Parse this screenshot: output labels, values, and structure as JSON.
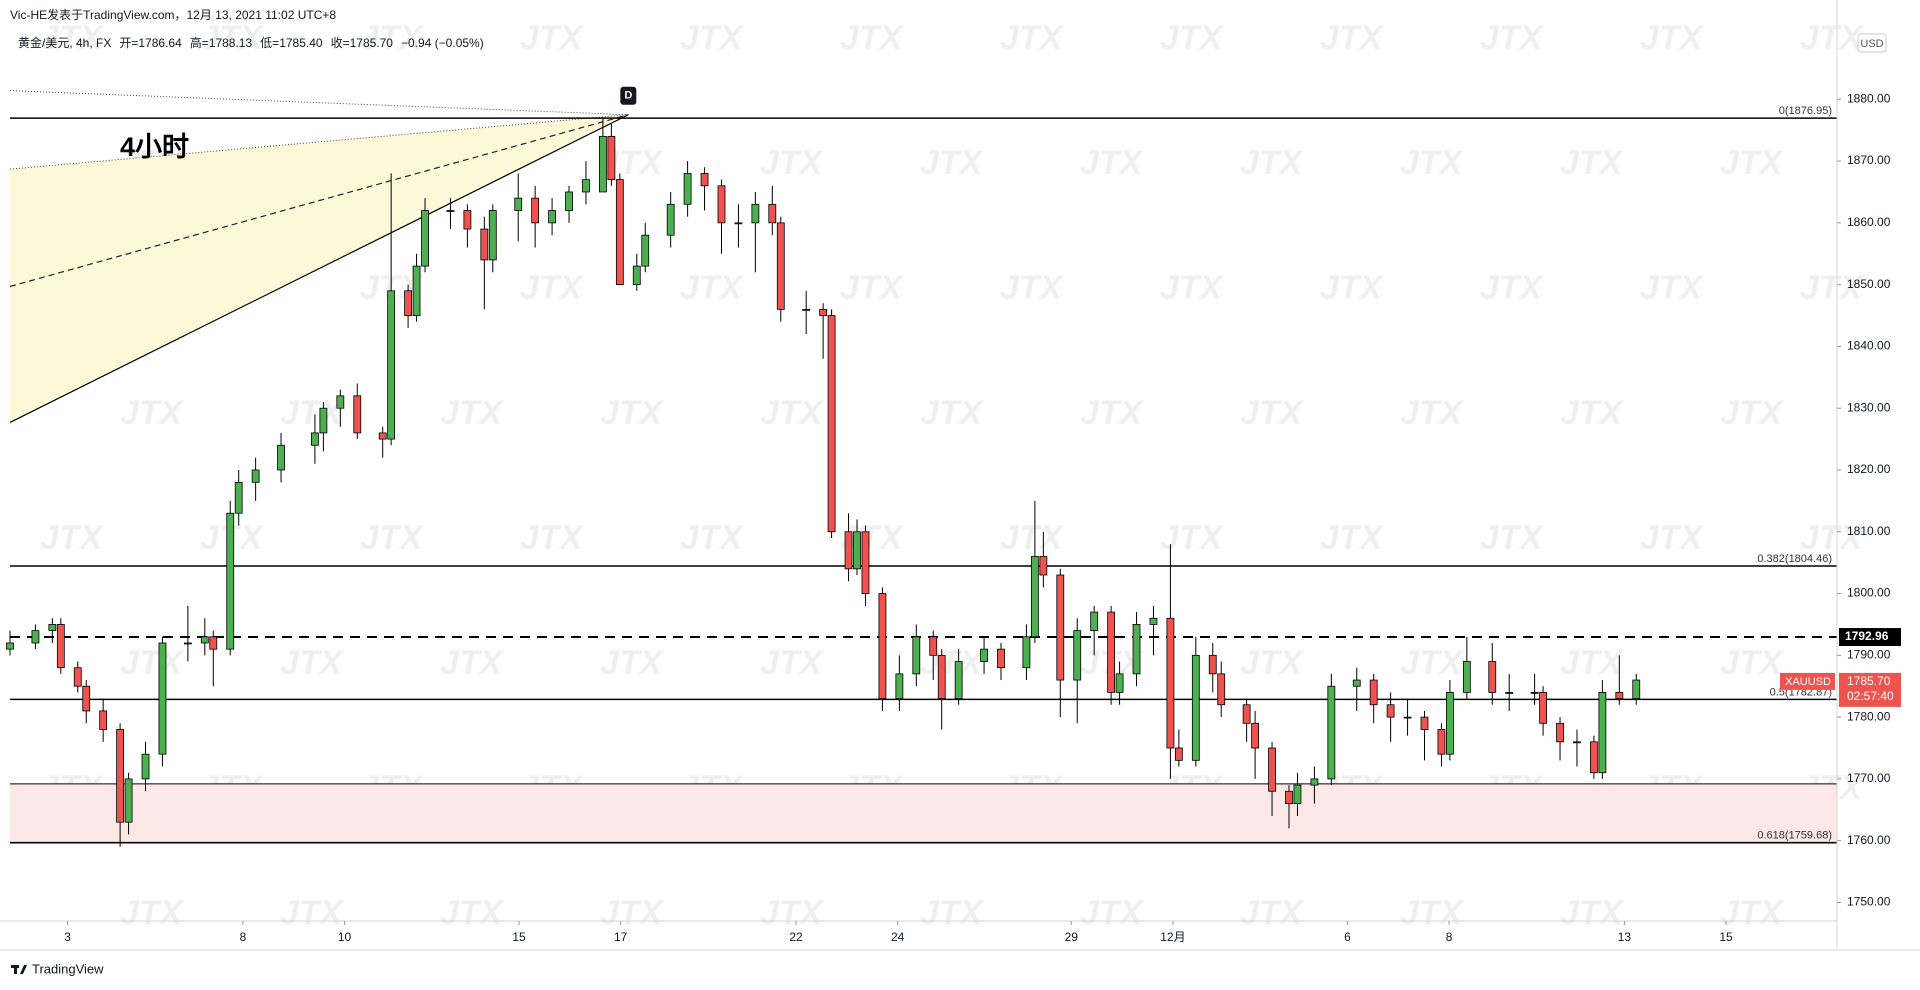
{
  "chart_data": {
    "type": "candlestick",
    "header": "Vic-HE发表于TradingView.com，12月 13, 2021 11:02 UTC+8",
    "symbol": "黄金/美元, 4h, FX",
    "ohlc_legend": [
      {
        "name": "开=",
        "value": 1786.64
      },
      {
        "name": "高=",
        "value": 1788.13
      },
      {
        "name": "低=",
        "value": 1785.4,
        "label": "1785.40"
      },
      {
        "name": "收=",
        "value": 1785.7,
        "label": "1785.70"
      }
    ],
    "change": "−0.94 (−0.05%)",
    "annotation": "4小时",
    "point_label": "D",
    "currency": "USD",
    "watermark": "JTX",
    "brand": "TradingView",
    "up_color": "#4caf50",
    "down_color": "#ef5350",
    "x": [
      0,
      3,
      5,
      6,
      8,
      9,
      11,
      13,
      14,
      16,
      18,
      21,
      23,
      24,
      26,
      27,
      29,
      32,
      36,
      37,
      39,
      41,
      44,
      45,
      47,
      48,
      49,
      52,
      54,
      56,
      57,
      60,
      62,
      64,
      66,
      68,
      70,
      71,
      72,
      74,
      75,
      78,
      80,
      82,
      84,
      86,
      88,
      90,
      91,
      94,
      96,
      97,
      99,
      100,
      101,
      103,
      105,
      107,
      109,
      110,
      112,
      115,
      117,
      120,
      121,
      122,
      124,
      126,
      128,
      130,
      131,
      133,
      135,
      137,
      138,
      140,
      142,
      143,
      146,
      147,
      149,
      151,
      152,
      154,
      156,
      159,
      161,
      163,
      165,
      167,
      169,
      170,
      172,
      175,
      177,
      180,
      181,
      183,
      185,
      187,
      188,
      190,
      192
    ],
    "open": [
      1791,
      1792,
      1794,
      1795,
      1788,
      1785,
      1781,
      1778,
      1763,
      1770,
      1774,
      1792,
      1792,
      1793,
      1791,
      1813,
      1818,
      1820,
      1824,
      1826,
      1830,
      1832,
      1826,
      1825,
      1849,
      1845,
      1853,
      1862,
      1862,
      1859,
      1854,
      1862,
      1864,
      1860,
      1862,
      1865,
      1865,
      1874,
      1867,
      1850,
      1853,
      1858,
      1863,
      1868,
      1866,
      1860,
      1860,
      1863,
      1860,
      1846,
      1846,
      1845,
      1810,
      1804,
      1810,
      1800,
      1783,
      1787,
      1793,
      1790,
      1783,
      1789,
      1791,
      1788,
      1793,
      1806,
      1803,
      1786,
      1794,
      1797,
      1784,
      1787,
      1795,
      1796,
      1775,
      1773,
      1790,
      1787,
      1782,
      1779,
      1775,
      1768,
      1766,
      1769,
      1770,
      1785,
      1786,
      1782,
      1780,
      1780,
      1778,
      1774,
      1784,
      1789,
      1784,
      1784,
      1784,
      1779,
      1776,
      1776,
      1771,
      1784,
      1783
    ],
    "high": [
      1794,
      1795,
      1796,
      1796,
      1789,
      1786,
      1783,
      1779,
      1771,
      1776,
      1793,
      1798,
      1796,
      1794,
      1815,
      1820,
      1822,
      1826,
      1829,
      1831,
      1833,
      1834,
      1827,
      1868,
      1850,
      1855,
      1864,
      1864,
      1863,
      1861,
      1863,
      1868,
      1866,
      1864,
      1866,
      1870,
      1877,
      1876,
      1868,
      1855,
      1860,
      1865,
      1870,
      1869,
      1867,
      1863,
      1865,
      1866,
      1861,
      1849,
      1847,
      1846,
      1813,
      1812,
      1811,
      1801,
      1790,
      1795,
      1794,
      1791,
      1791,
      1793,
      1792,
      1795,
      1815,
      1810,
      1804,
      1796,
      1798,
      1798,
      1789,
      1797,
      1798,
      1808,
      1778,
      1793,
      1792,
      1789,
      1783,
      1781,
      1776,
      1769,
      1771,
      1772,
      1787,
      1788,
      1787,
      1784,
      1783,
      1781,
      1779,
      1786,
      1793,
      1792,
      1787,
      1787,
      1785,
      1780,
      1778,
      1777,
      1786,
      1790,
      1787
    ],
    "low": [
      1790,
      1791,
      1792,
      1787,
      1784,
      1779,
      1776,
      1759,
      1761,
      1768,
      1772,
      1789,
      1790,
      1785,
      1790,
      1811,
      1815,
      1818,
      1821,
      1823,
      1827,
      1825,
      1822,
      1824,
      1843,
      1844,
      1852,
      1859,
      1856,
      1846,
      1852,
      1857,
      1856,
      1858,
      1860,
      1863,
      1866,
      1866,
      1850,
      1849,
      1852,
      1856,
      1861,
      1862,
      1855,
      1856,
      1852,
      1858,
      1844,
      1842,
      1838,
      1809,
      1802,
      1803,
      1798,
      1781,
      1781,
      1785,
      1786,
      1778,
      1782,
      1787,
      1786,
      1786,
      1792,
      1801,
      1780,
      1779,
      1790,
      1782,
      1782,
      1785,
      1790,
      1770,
      1772,
      1772,
      1784,
      1780,
      1776,
      1770,
      1764,
      1762,
      1764,
      1766,
      1769,
      1781,
      1779,
      1776,
      1777,
      1773,
      1772,
      1773,
      1783,
      1782,
      1781,
      1782,
      1777,
      1773,
      1772,
      1770,
      1770,
      1782,
      1782
    ],
    "close": [
      1792,
      1794,
      1795,
      1788,
      1785,
      1781,
      1778,
      1763,
      1770,
      1774,
      1792,
      1792,
      1793,
      1791,
      1813,
      1818,
      1820,
      1824,
      1826,
      1830,
      1832,
      1826,
      1825,
      1849,
      1845,
      1853,
      1862,
      1862,
      1859,
      1854,
      1862,
      1864,
      1860,
      1862,
      1865,
      1867,
      1874,
      1867,
      1850,
      1853,
      1858,
      1863,
      1868,
      1866,
      1860,
      1860,
      1863,
      1860,
      1846,
      1846,
      1845,
      1810,
      1804,
      1810,
      1800,
      1783,
      1787,
      1793,
      1790,
      1783,
      1789,
      1791,
      1788,
      1793,
      1806,
      1803,
      1786,
      1794,
      1797,
      1784,
      1787,
      1795,
      1796,
      1775,
      1773,
      1790,
      1787,
      1782,
      1779,
      1775,
      1768,
      1766,
      1769,
      1770,
      1785,
      1786,
      1782,
      1780,
      1780,
      1778,
      1774,
      1784,
      1789,
      1784,
      1784,
      1784,
      1779,
      1776,
      1776,
      1771,
      1784,
      1783,
      1786
    ],
    "xlim": [
      0,
      215.7
    ],
    "xticks": [
      {
        "value": 6.8,
        "label": "3"
      },
      {
        "value": 27.5,
        "label": "8"
      },
      {
        "value": 39.5,
        "label": "10"
      },
      {
        "value": 60.1,
        "label": "15"
      },
      {
        "value": 72.1,
        "label": "17"
      },
      {
        "value": 92.8,
        "label": "22"
      },
      {
        "value": 104.8,
        "label": "24"
      },
      {
        "value": 125.3,
        "label": "29"
      },
      {
        "value": 137.3,
        "label": "12月"
      },
      {
        "value": 157.9,
        "label": "6"
      },
      {
        "value": 169.9,
        "label": "8"
      },
      {
        "value": 190.6,
        "label": "13"
      },
      {
        "value": 202.6,
        "label": "15"
      }
    ],
    "ylim": [
      1747,
      1891.7
    ],
    "yticks": [
      {
        "value": 1750,
        "label": "1750.00"
      },
      {
        "value": 1760,
        "label": "1760.00"
      },
      {
        "value": 1770,
        "label": "1770.00"
      },
      {
        "value": 1780,
        "label": "1780.00"
      },
      {
        "value": 1790,
        "label": "1790.00"
      },
      {
        "value": 1800,
        "label": "1800.00"
      },
      {
        "value": 1810,
        "label": "1810.00"
      },
      {
        "value": 1820,
        "label": "1820.00"
      },
      {
        "value": 1830,
        "label": "1830.00"
      },
      {
        "value": 1840,
        "label": "1840.00"
      },
      {
        "value": 1850,
        "label": "1850.00"
      },
      {
        "value": 1860,
        "label": "1860.00"
      },
      {
        "value": 1870,
        "label": "1870.00"
      },
      {
        "value": 1880,
        "label": "1880.00"
      }
    ],
    "levels": [
      {
        "value": 1876.95,
        "label": "0(1876.95)"
      },
      {
        "value": 1804.46,
        "label": "0.382(1804.46)"
      },
      {
        "value": 1782.87,
        "label": "0.5(1782.87)"
      },
      {
        "value": 1759.68,
        "label": "0.618(1759.68)"
      }
    ],
    "dashed_level": {
      "value": 1792.96,
      "label": "1792.96"
    },
    "zone_top": 1769.2,
    "fan": {
      "apex_x": 73,
      "apex_y": 1877.5,
      "left_values": [
        1881.4,
        1868.7,
        1849.7,
        1827.7
      ]
    },
    "last": {
      "name": "XAUUSD",
      "value": 1785.7,
      "label": "1785.70",
      "countdown": "02:57:40"
    }
  }
}
